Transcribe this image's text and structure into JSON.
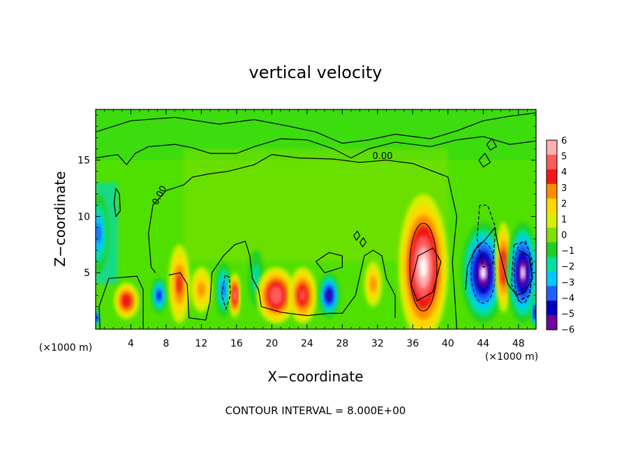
{
  "chart_data": {
    "type": "heatmap",
    "title": "vertical velocity",
    "xlabel": "X−coordinate",
    "ylabel": "Z−coordinate",
    "x_unit_left": "(×1000 m)",
    "x_unit_right": "(×1000 m)",
    "footer": "CONTOUR INTERVAL = 8.000E+00",
    "xlim": [
      0,
      50
    ],
    "ylim": [
      0,
      19.5
    ],
    "x_ticks": [
      "4",
      "8",
      "12",
      "16",
      "20",
      "24",
      "28",
      "32",
      "36",
      "40",
      "44",
      "48"
    ],
    "y_ticks": [
      "5",
      "10",
      "15"
    ],
    "contour_labels": [
      "0.00",
      "0.00"
    ],
    "colorbar": {
      "labels": [
        "6",
        "5",
        "4",
        "3",
        "2",
        "1",
        "0",
        "−1",
        "−2",
        "−3",
        "−4",
        "−5",
        "−6"
      ],
      "colors": [
        "#ffb0b0",
        "#ff5a5a",
        "#f01818",
        "#ff8c00",
        "#ffd800",
        "#d8f000",
        "#80e000",
        "#20d020",
        "#00e0a0",
        "#00c8ff",
        "#2060ff",
        "#0000c0",
        "#7000a0"
      ]
    },
    "features": [
      {
        "x": 3.5,
        "z": 2.5,
        "w": 1.4,
        "h": 1.6,
        "value": 4.5
      },
      {
        "x": 0.3,
        "z": 8.5,
        "w": 1.2,
        "h": 3.5,
        "value": -3.5
      },
      {
        "x": 7.2,
        "z": 3.0,
        "w": 0.9,
        "h": 1.6,
        "value": -5
      },
      {
        "x": 9.5,
        "z": 4.0,
        "w": 1.2,
        "h": 3.5,
        "value": 4
      },
      {
        "x": 12.0,
        "z": 3.5,
        "w": 1.2,
        "h": 2.0,
        "value": 3
      },
      {
        "x": 14.5,
        "z": 3.5,
        "w": 0.9,
        "h": 2.5,
        "value": -4
      },
      {
        "x": 15.8,
        "z": 3.0,
        "w": 0.6,
        "h": 2.0,
        "value": 6
      },
      {
        "x": 18.2,
        "z": 4.5,
        "w": 0.9,
        "h": 2.5,
        "value": -2
      },
      {
        "x": 20.5,
        "z": 3.0,
        "w": 2.2,
        "h": 2.5,
        "value": 5.5
      },
      {
        "x": 23.5,
        "z": 3.0,
        "w": 1.6,
        "h": 2.5,
        "value": 5
      },
      {
        "x": 26.5,
        "z": 3.0,
        "w": 1.2,
        "h": 2.0,
        "value": -5.5
      },
      {
        "x": 31.5,
        "z": 4.0,
        "w": 1.0,
        "h": 2.0,
        "value": 3
      },
      {
        "x": 37.2,
        "z": 5.5,
        "w": 2.8,
        "h": 6.5,
        "value": 7
      },
      {
        "x": 44.0,
        "z": 5.0,
        "w": 2.5,
        "h": 4.5,
        "value": -7
      },
      {
        "x": 46.3,
        "z": 5.5,
        "w": 0.9,
        "h": 4.0,
        "value": 5
      },
      {
        "x": 48.5,
        "z": 5.0,
        "w": 1.8,
        "h": 4.5,
        "value": -7
      },
      {
        "x": 49.9,
        "z": 1.5,
        "w": 0.5,
        "h": 1.5,
        "value": -6
      },
      {
        "x": 0.1,
        "z": 1.0,
        "w": 0.4,
        "h": 0.8,
        "value": -6
      }
    ]
  }
}
